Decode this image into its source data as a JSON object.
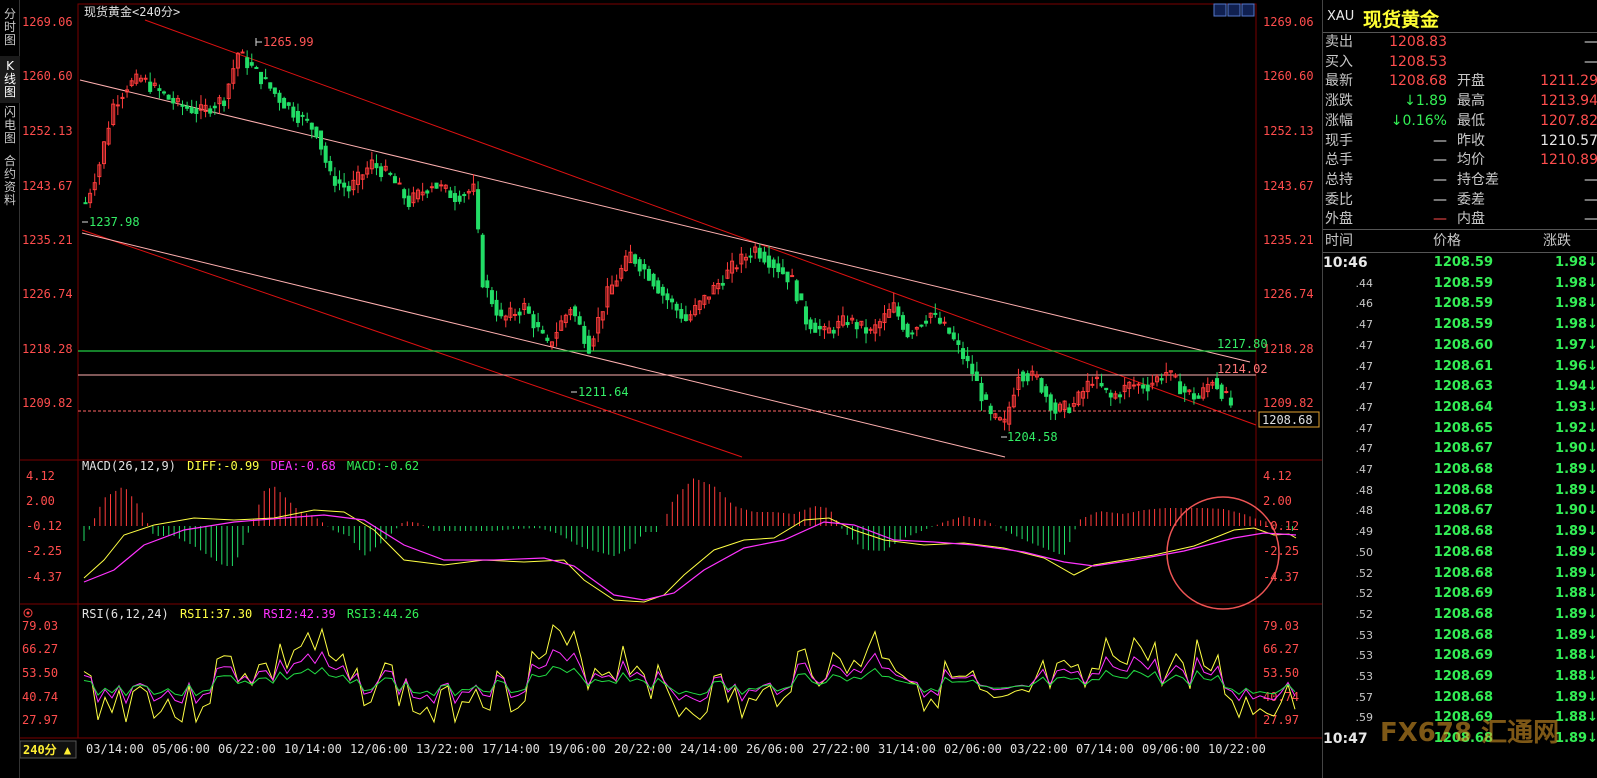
{
  "chart": {
    "title": "现货黄金",
    "period": "240分",
    "period_button": "240分 ▲",
    "price_axis": [
      "1269.06",
      "1260.60",
      "1252.13",
      "1243.67",
      "1235.21",
      "1226.74",
      "1218.28",
      "1209.82"
    ],
    "price_labels": {
      "high": "1265.99",
      "start": "1237.98",
      "mid_low": "1211.64",
      "low": "1204.58",
      "resistance": "1217.80",
      "pink_line": "1214.02",
      "last": "1208.68"
    },
    "x_labels": [
      "03/14:00",
      "05/06:00",
      "06/22:00",
      "10/14:00",
      "12/06:00",
      "13/22:00",
      "17/14:00",
      "19/06:00",
      "20/22:00",
      "24/14:00",
      "26/06:00",
      "27/22:00",
      "31/14:00",
      "02/06:00",
      "03/22:00",
      "07/14:00",
      "09/06:00",
      "10/22:00"
    ],
    "macd": {
      "label": "MACD(26,12,9)",
      "diff": "DIFF:-0.99",
      "dea": "DEA:-0.68",
      "macd": "MACD:-0.62",
      "axis": [
        "4.12",
        "2.00",
        "-0.12",
        "-2.25",
        "-4.37"
      ]
    },
    "rsi": {
      "label": "RSI(6,12,24)",
      "rsi1": "RSI1:37.30",
      "rsi2": "RSI2:42.39",
      "rsi3": "RSI3:44.26",
      "axis": [
        "79.03",
        "66.27",
        "53.50",
        "40.74",
        "27.97"
      ]
    }
  },
  "left_tabs": [
    "分\n时\n图",
    "K\n线\n图",
    "闪\n电\n图",
    "合\n约\n资\n料"
  ],
  "panel": {
    "symbol": "XAU",
    "name": "现货黄金",
    "quotes": [
      {
        "l1": "卖出",
        "v1": "1208.83",
        "c1": "red",
        "l2": "",
        "v2": "—",
        "c2": "wht"
      },
      {
        "l1": "买入",
        "v1": "1208.53",
        "c1": "red",
        "l2": "",
        "v2": "—",
        "c2": "wht"
      },
      {
        "l1": "最新",
        "v1": "1208.68",
        "c1": "red",
        "l2": "开盘",
        "v2": "1211.29",
        "c2": "red"
      },
      {
        "l1": "涨跌",
        "v1": "↓1.89",
        "c1": "grn",
        "l2": "最高",
        "v2": "1213.94",
        "c2": "red"
      },
      {
        "l1": "涨幅",
        "v1": "↓0.16%",
        "c1": "grn",
        "l2": "最低",
        "v2": "1207.82",
        "c2": "red"
      },
      {
        "l1": "现手",
        "v1": "—",
        "c1": "wht",
        "l2": "昨收",
        "v2": "1210.57",
        "c2": "wht"
      },
      {
        "l1": "总手",
        "v1": "—",
        "c1": "wht",
        "l2": "均价",
        "v2": "1210.89",
        "c2": "red"
      },
      {
        "l1": "总持",
        "v1": "—",
        "c1": "wht",
        "l2": "持仓差",
        "v2": "—",
        "c2": "wht"
      },
      {
        "l1": "委比",
        "v1": "—",
        "c1": "wht",
        "l2": "委差",
        "v2": "—",
        "c2": "wht"
      },
      {
        "l1": "外盘",
        "v1": "—",
        "c1": "red",
        "l2": "内盘",
        "v2": "—",
        "c2": "wht"
      }
    ],
    "tick_header": {
      "time": "时间",
      "price": "价格",
      "change": "涨跌"
    },
    "ticks": [
      {
        "t": "10:46",
        "p": "1208.59",
        "c": "1.98↓"
      },
      {
        "t": ".44",
        "p": "1208.59",
        "c": "1.98↓"
      },
      {
        "t": ".46",
        "p": "1208.59",
        "c": "1.98↓"
      },
      {
        "t": ".47",
        "p": "1208.59",
        "c": "1.98↓"
      },
      {
        "t": ".47",
        "p": "1208.60",
        "c": "1.97↓"
      },
      {
        "t": ".47",
        "p": "1208.61",
        "c": "1.96↓"
      },
      {
        "t": ".47",
        "p": "1208.63",
        "c": "1.94↓"
      },
      {
        "t": ".47",
        "p": "1208.64",
        "c": "1.93↓"
      },
      {
        "t": ".47",
        "p": "1208.65",
        "c": "1.92↓"
      },
      {
        "t": ".47",
        "p": "1208.67",
        "c": "1.90↓"
      },
      {
        "t": ".47",
        "p": "1208.68",
        "c": "1.89↓"
      },
      {
        "t": ".48",
        "p": "1208.68",
        "c": "1.89↓"
      },
      {
        "t": ".48",
        "p": "1208.67",
        "c": "1.90↓"
      },
      {
        "t": ".49",
        "p": "1208.68",
        "c": "1.89↓"
      },
      {
        "t": ".50",
        "p": "1208.68",
        "c": "1.89↓"
      },
      {
        "t": ".52",
        "p": "1208.68",
        "c": "1.89↓"
      },
      {
        "t": ".52",
        "p": "1208.69",
        "c": "1.88↓"
      },
      {
        "t": ".52",
        "p": "1208.68",
        "c": "1.89↓"
      },
      {
        "t": ".53",
        "p": "1208.68",
        "c": "1.89↓"
      },
      {
        "t": ".53",
        "p": "1208.69",
        "c": "1.88↓"
      },
      {
        "t": ".53",
        "p": "1208.69",
        "c": "1.88↓"
      },
      {
        "t": ".57",
        "p": "1208.68",
        "c": "1.89↓"
      },
      {
        "t": ".59",
        "p": "1208.69",
        "c": "1.88↓"
      },
      {
        "t": "10:47",
        "p": "1208.68",
        "c": "1.89↓"
      }
    ]
  },
  "watermark": "FX678 汇通网",
  "colors": {
    "up": "#ff3333",
    "down": "#22dd66",
    "resistance": "#22cc44",
    "trend": "#dd1111",
    "channel": "#ffaaaa",
    "diff": "#ffff44",
    "dea": "#ff33ff",
    "rsi3": "#22dd44"
  }
}
